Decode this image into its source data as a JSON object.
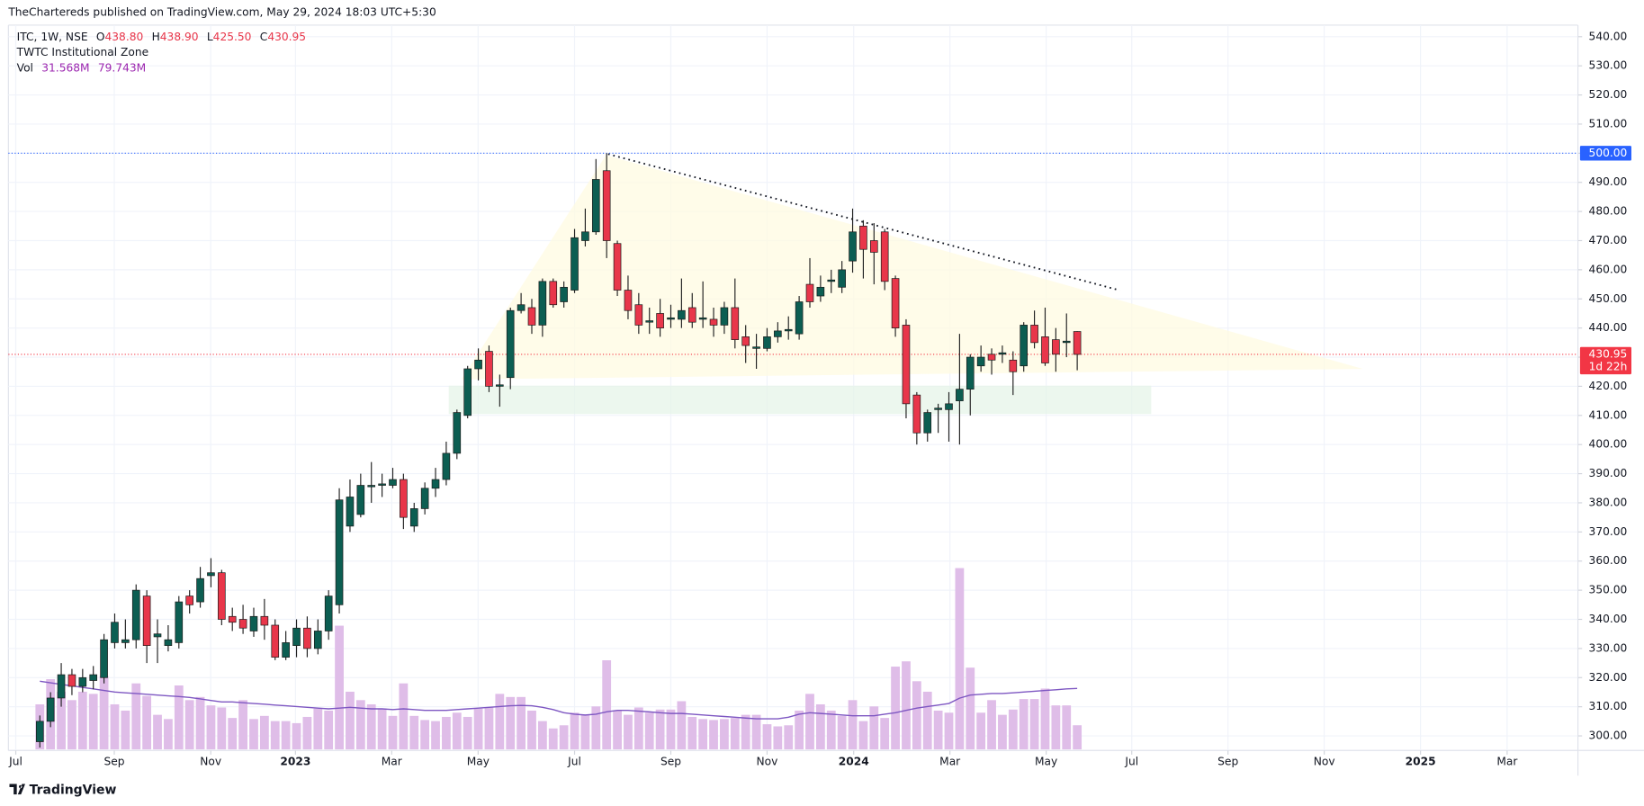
{
  "header": "TheChartereds published on TradingView.com, May 29, 2024 18:03 UTC+5:30",
  "brand": "TradingView",
  "chart_data": {
    "type": "candlestick",
    "symbol": "ITC, 1W, NSE",
    "ohlc_legend": [
      {
        "key": "O",
        "value": "438.80"
      },
      {
        "key": "H",
        "value": "438.90"
      },
      {
        "key": "L",
        "value": "425.50"
      },
      {
        "key": "C",
        "value": "430.95"
      }
    ],
    "indicator": "TWTC Institutional Zone",
    "volume_legend": {
      "name": "Vol",
      "value": "31.568M",
      "ma": "79.743M"
    },
    "up_color": "#0c5e52",
    "down_color": "#e8364a",
    "wick_color": "#222222",
    "volume_color": "#dfbde8",
    "ma_color": "#7e57c2",
    "grid": true,
    "xlim": [
      -2.94,
      143.82
    ],
    "xticks": [
      {
        "value": -2.25,
        "label": "Jul"
      },
      {
        "value": 6.96,
        "label": "Sep"
      },
      {
        "value": 15.98,
        "label": "Nov"
      },
      {
        "value": 23.9,
        "label": "2023"
      },
      {
        "value": 32.9,
        "label": "Mar"
      },
      {
        "value": 40.98,
        "label": "May"
      },
      {
        "value": 50,
        "label": "Jul"
      },
      {
        "value": 59,
        "label": "Sep"
      },
      {
        "value": 68,
        "label": "Nov"
      },
      {
        "value": 76.1,
        "label": "2024"
      },
      {
        "value": 85.1,
        "label": "Mar"
      },
      {
        "value": 94.1,
        "label": "May"
      },
      {
        "value": 102.1,
        "label": "Jul"
      },
      {
        "value": 111.1,
        "label": "Sep"
      },
      {
        "value": 120.1,
        "label": "Nov"
      },
      {
        "value": 129.1,
        "label": "2025"
      },
      {
        "value": 137.2,
        "label": "Mar"
      }
    ],
    "ylim": [
      295,
      543.96
    ],
    "yticks": [
      {
        "value": 300,
        "label": "300.00"
      },
      {
        "value": 310,
        "label": "310.00"
      },
      {
        "value": 320,
        "label": "320.00"
      },
      {
        "value": 330,
        "label": "330.00"
      },
      {
        "value": 340,
        "label": "340.00"
      },
      {
        "value": 350,
        "label": "350.00"
      },
      {
        "value": 360,
        "label": "360.00"
      },
      {
        "value": 370,
        "label": "370.00"
      },
      {
        "value": 380,
        "label": "380.00"
      },
      {
        "value": 390,
        "label": "390.00"
      },
      {
        "value": 400,
        "label": "400.00"
      },
      {
        "value": 410,
        "label": "410.00"
      },
      {
        "value": 420,
        "label": "420.00"
      },
      {
        "value": 430,
        "label": "430.00"
      },
      {
        "value": 440,
        "label": "440.00"
      },
      {
        "value": 450,
        "label": "450.00"
      },
      {
        "value": 460,
        "label": "460.00"
      },
      {
        "value": 470,
        "label": "470.00"
      },
      {
        "value": 480,
        "label": "480.00"
      },
      {
        "value": 490,
        "label": "490.00"
      },
      {
        "value": 500,
        "label": "500.00"
      },
      {
        "value": 510,
        "label": "510.00"
      },
      {
        "value": 520,
        "label": "520.00"
      },
      {
        "value": 530,
        "label": "530.00"
      },
      {
        "value": 540,
        "label": "540.00"
      }
    ],
    "price_lines": [
      {
        "value": 500,
        "label": "500.00",
        "color": "#2962ff"
      },
      {
        "value": 430.95,
        "label": "430.95",
        "countdown": "1d 22h",
        "color": "#f23645"
      }
    ],
    "open": [
      298,
      305,
      313,
      321,
      317,
      319,
      320,
      332,
      332,
      333,
      348,
      334,
      331,
      332,
      348,
      346,
      355,
      356,
      341,
      340,
      336,
      341,
      338,
      327,
      331,
      337,
      330,
      336,
      345,
      372,
      376,
      385.5,
      386,
      386,
      388,
      372,
      378,
      385,
      388,
      397,
      410,
      426,
      432,
      420,
      423,
      446,
      447,
      441,
      456,
      449,
      453,
      470,
      473,
      494,
      469,
      453,
      448,
      442,
      445,
      443,
      443,
      447,
      443,
      443,
      441,
      447,
      437,
      433,
      433,
      437,
      439,
      438,
      455,
      451,
      456,
      454,
      463,
      475,
      470,
      473,
      457,
      441,
      417,
      404,
      412,
      412,
      415,
      419,
      427,
      431,
      431,
      429,
      427,
      441,
      437,
      436,
      435,
      438.8
    ],
    "high": [
      307,
      315,
      325,
      323,
      323,
      324,
      335,
      342,
      340,
      352,
      350,
      340,
      338,
      348,
      350,
      358,
      361,
      357,
      344,
      345,
      344,
      347,
      340,
      336,
      340,
      341,
      340,
      350,
      385,
      388,
      390,
      394,
      390,
      392,
      390,
      380,
      387,
      392,
      401,
      412,
      427,
      433,
      434,
      424,
      447,
      452,
      450,
      457,
      457,
      456,
      474,
      481,
      498,
      500,
      470,
      458,
      452,
      447,
      450,
      448,
      457,
      452,
      456,
      447,
      449,
      457,
      441,
      438,
      440,
      442,
      444,
      451,
      464,
      458,
      460,
      463,
      481,
      477,
      476,
      474,
      458,
      443,
      418,
      412,
      414,
      418,
      438,
      431,
      434,
      433,
      434,
      432,
      442,
      446,
      447,
      440,
      445,
      438.9
    ],
    "low": [
      296,
      303,
      310,
      314,
      315,
      316,
      318,
      330,
      330,
      330,
      325,
      325,
      329,
      330,
      342,
      344,
      351,
      338,
      336,
      335,
      334,
      333,
      326,
      326,
      327,
      327,
      328,
      333,
      342,
      370,
      375,
      380,
      382,
      385,
      371,
      370,
      376,
      382,
      386,
      395,
      409,
      422,
      418,
      413,
      419,
      445,
      438,
      437,
      447,
      447,
      452,
      468,
      472,
      464,
      451,
      443,
      438,
      438,
      437,
      440,
      440,
      440,
      440,
      437,
      438,
      433,
      428,
      426,
      432,
      435,
      436,
      436,
      447,
      449,
      452,
      452,
      459,
      457,
      455,
      453,
      437,
      409,
      400,
      401,
      404,
      401,
      400,
      410,
      425,
      424,
      428,
      417,
      425,
      433,
      427,
      425,
      430,
      425.5
    ],
    "close": [
      305,
      313,
      321,
      317,
      320,
      321,
      333,
      339,
      333,
      350,
      331,
      335,
      333,
      346,
      345,
      354,
      356,
      340,
      339,
      337,
      341,
      338,
      327,
      332,
      337,
      330,
      336,
      348,
      381,
      382,
      386,
      386,
      386.5,
      388,
      375,
      378,
      385,
      388,
      397,
      411,
      426,
      429,
      420,
      420.5,
      446,
      448,
      441,
      456,
      448,
      454,
      471,
      473,
      491,
      470,
      453,
      446,
      441,
      442.5,
      440,
      443.5,
      446,
      442,
      443.5,
      441,
      447,
      436,
      434,
      433.5,
      437,
      439,
      439.5,
      449,
      449,
      454,
      456.5,
      460,
      473,
      467,
      466,
      456,
      440,
      414,
      404,
      411,
      412.5,
      414,
      419,
      430,
      430,
      429,
      431.5,
      425,
      441,
      435,
      428,
      431,
      435.5,
      430.95
    ],
    "volume": [
      58.9,
      91.8,
      75.4,
      64.4,
      75.4,
      72.6,
      95.9,
      58.9,
      50.7,
      86.3,
      69.9,
      45.2,
      39.7,
      83.6,
      64.4,
      68.5,
      57.5,
      54.8,
      41.1,
      64.4,
      39.7,
      43.8,
      37,
      37,
      34.3,
      42.5,
      53.4,
      50.7,
      161.7,
      75.4,
      64.4,
      58.9,
      53.4,
      43.8,
      86.3,
      43.8,
      38.4,
      37,
      42.5,
      48,
      42.5,
      53.4,
      54.8,
      72.6,
      68.5,
      68.5,
      50.7,
      37,
      27.4,
      31.5,
      48,
      45.2,
      56.2,
      116.5,
      50.7,
      45.2,
      54.8,
      48,
      52.1,
      52.1,
      63,
      42.5,
      39.7,
      38.4,
      39.7,
      41.1,
      45.2,
      45.2,
      32.9,
      30.1,
      31.5,
      50.7,
      72.6,
      58.9,
      50.7,
      43.8,
      64.4,
      37,
      56.2,
      41.1,
      108.2,
      115.1,
      89.1,
      75.4,
      50.7,
      48,
      237,
      106.9,
      48,
      64.4,
      45.2,
      52.1,
      65.8,
      65.8,
      79.5,
      57.5,
      57.5,
      31.568
    ],
    "volume_ma": [
      89,
      87,
      85,
      83,
      81,
      79,
      77,
      75,
      74,
      73,
      72,
      71,
      70,
      69,
      68,
      66,
      64,
      62,
      62,
      61,
      60,
      59,
      58,
      57,
      56,
      55,
      54,
      53,
      54,
      55,
      54,
      53,
      53,
      52,
      53,
      52,
      51,
      51,
      51,
      52,
      53,
      54,
      55,
      56,
      57,
      57.5,
      57,
      55,
      52,
      48,
      46,
      45,
      46,
      49,
      51,
      51,
      50,
      49,
      48,
      47,
      47,
      46,
      45,
      44,
      43,
      42,
      41,
      40,
      40,
      40,
      42,
      46,
      48,
      47,
      46,
      45,
      44,
      44,
      44,
      46,
      48,
      51,
      54,
      56,
      58,
      60,
      67,
      71,
      72,
      73,
      73,
      74,
      75,
      76,
      77,
      78,
      79,
      79.743
    ]
  }
}
